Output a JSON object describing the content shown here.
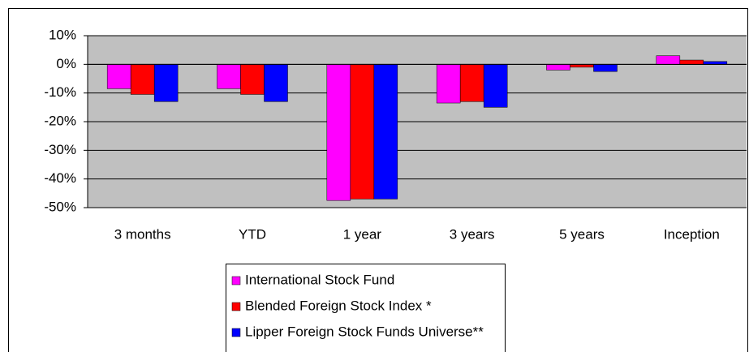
{
  "chart_data": {
    "type": "bar",
    "categories": [
      "3 months",
      "YTD",
      "1 year",
      "3 years",
      "5 years",
      "Inception"
    ],
    "series": [
      {
        "name": "International Stock Fund",
        "color": "#ff00ff",
        "values": [
          -8.5,
          -8.5,
          -47.5,
          -13.5,
          -2,
          3
        ]
      },
      {
        "name": "Blended Foreign Stock Index *",
        "color": "#ff0000",
        "values": [
          -10.5,
          -10.5,
          -47,
          -13,
          -1,
          1.5
        ]
      },
      {
        "name": "Lipper Foreign Stock Funds Universe**",
        "color": "#0000ff",
        "values": [
          -13,
          -13,
          -47,
          -15,
          -2.5,
          1
        ]
      }
    ],
    "ylim": [
      -50,
      10
    ],
    "yticks": [
      {
        "value": -50,
        "label": "-50%"
      },
      {
        "value": -40,
        "label": "-40%"
      },
      {
        "value": -30,
        "label": "-30%"
      },
      {
        "value": -20,
        "label": "-20%"
      },
      {
        "value": -10,
        "label": "-10%"
      },
      {
        "value": 0,
        "label": "0%"
      },
      {
        "value": 10,
        "label": "10%"
      }
    ],
    "grid": true,
    "legend": "bottom"
  }
}
